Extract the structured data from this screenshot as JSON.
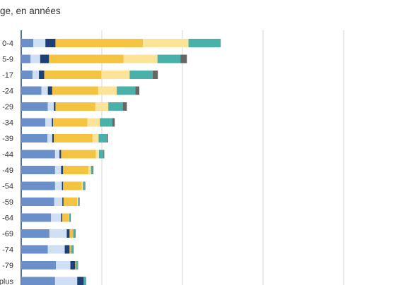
{
  "title": "ge, en années",
  "chart_data": {
    "type": "bar",
    "orientation": "horizontal",
    "stacked": true,
    "grid": true,
    "categories": [
      "0-4",
      "5-9",
      "-17",
      "-24",
      "-29",
      "-34",
      "-39",
      "-44",
      "-49",
      "-54",
      "-59",
      "-64",
      "-69",
      "-74",
      "-79",
      "plus"
    ],
    "series": [
      {
        "values": [
          3,
          2.3,
          2.8,
          5,
          6.6,
          6,
          6.5,
          8.4,
          8.4,
          8.4,
          8.2,
          7.4,
          7,
          6.6,
          8.6,
          8.4
        ],
        "color": "#6b8fc8"
      },
      {
        "values": [
          3,
          2.4,
          1.6,
          1.6,
          1.5,
          1.6,
          1.2,
          1.1,
          1.5,
          1.7,
          2,
          2.5,
          4.3,
          4.2,
          3.6,
          5.5
        ],
        "color": "#cfe0f4"
      },
      {
        "values": [
          2.5,
          2.2,
          1.3,
          1.1,
          0.4,
          0.3,
          0.4,
          0.4,
          0.5,
          0.3,
          0.3,
          0.3,
          0.7,
          1.2,
          1.2,
          1.6
        ],
        "color": "#1f3f78"
      },
      {
        "values": [
          21.7,
          18.5,
          14.2,
          11.4,
          9.9,
          8.5,
          9.6,
          8.6,
          6.3,
          4.6,
          3.4,
          1.6,
          0.9,
          0.4,
          0.2,
          0
        ],
        "color": "#f5c342"
      },
      {
        "values": [
          11.3,
          8.4,
          7,
          4.6,
          3.2,
          3.1,
          1.5,
          0.8,
          0.6,
          0.3,
          0.2,
          0.1,
          0,
          0,
          0,
          0
        ],
        "color": "#fbe49a"
      },
      {
        "values": [
          8,
          5.7,
          5.7,
          4.6,
          3.6,
          3.1,
          2,
          1.1,
          0.4,
          0.5,
          0.3,
          0.3,
          0.5,
          0.5,
          0.4,
          0.5
        ],
        "color": "#4ab0aa"
      },
      {
        "values": [
          0,
          1.6,
          1.3,
          1,
          1,
          0.6,
          0.3,
          0.2,
          0.2,
          0.1,
          0.1,
          0.1,
          0.1,
          0.1,
          0.1,
          0.1
        ],
        "color": "#666666"
      }
    ]
  }
}
